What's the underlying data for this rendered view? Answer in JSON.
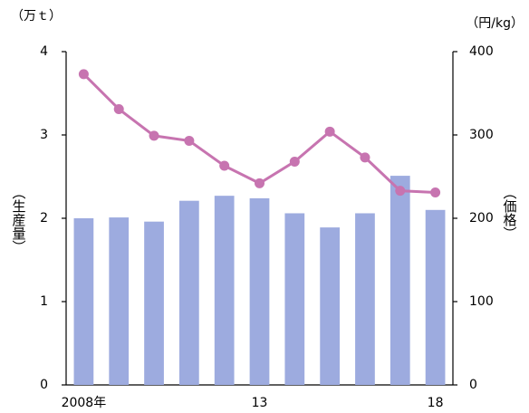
{
  "chart_data": {
    "type": "bar_line",
    "y_unit": "（万ｔ）",
    "y2_unit": "（円/kg）",
    "y_label": "（生産量）",
    "y2_label": "（価格）",
    "categories": [
      "2008年",
      null,
      null,
      null,
      null,
      "13",
      null,
      null,
      null,
      null,
      "18"
    ],
    "series": [
      {
        "type": "bar",
        "color": "#9dabdf",
        "values": [
          2.0,
          2.01,
          1.96,
          2.21,
          2.27,
          2.24,
          2.06,
          1.89,
          2.06,
          2.51,
          2.1
        ]
      },
      {
        "type": "line",
        "axis": "y2",
        "color": "#c774b0",
        "values": [
          373,
          331,
          299,
          293,
          263,
          242,
          268,
          304,
          273,
          233,
          231
        ]
      }
    ],
    "ylim": [
      0,
      4
    ],
    "yticks": [
      0,
      1,
      2,
      3,
      4
    ],
    "y2lim": [
      0,
      400
    ],
    "y2ticks": [
      0,
      100,
      200,
      300,
      400
    ]
  }
}
